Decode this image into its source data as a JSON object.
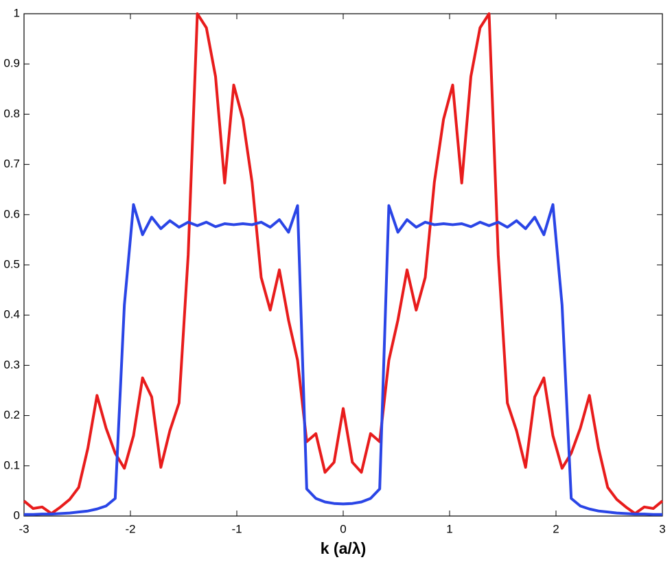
{
  "chart_data": {
    "type": "line",
    "xlabel": "k (a/λ)",
    "x": [
      -3,
      -2.914,
      -2.829,
      -2.743,
      -2.657,
      -2.571,
      -2.486,
      -2.4,
      -2.314,
      -2.229,
      -2.143,
      -2.057,
      -1.971,
      -1.886,
      -1.8,
      -1.714,
      -1.629,
      -1.543,
      -1.457,
      -1.371,
      -1.286,
      -1.2,
      -1.114,
      -1.029,
      -0.943,
      -0.857,
      -0.771,
      -0.686,
      -0.6,
      -0.514,
      -0.429,
      -0.343,
      -0.257,
      -0.171,
      -0.086,
      0,
      0.086,
      0.171,
      0.257,
      0.343,
      0.429,
      0.514,
      0.6,
      0.686,
      0.771,
      0.857,
      0.943,
      1.029,
      1.114,
      1.2,
      1.286,
      1.371,
      1.457,
      1.543,
      1.629,
      1.714,
      1.8,
      1.886,
      1.971,
      2.057,
      2.143,
      2.229,
      2.314,
      2.4,
      2.486,
      2.571,
      2.657,
      2.743,
      2.829,
      2.914,
      3
    ],
    "series": [
      {
        "color": "#e81c1c",
        "values": [
          0.03,
          0.015,
          0.018,
          0.005,
          0.018,
          0.033,
          0.057,
          0.135,
          0.24,
          0.175,
          0.125,
          0.095,
          0.16,
          0.275,
          0.237,
          0.097,
          0.17,
          0.225,
          0.52,
          1.0,
          0.972,
          0.875,
          0.663,
          0.858,
          0.79,
          0.665,
          0.475,
          0.41,
          0.49,
          0.39,
          0.31,
          0.148,
          0.164,
          0.087,
          0.107,
          0.214,
          0.107,
          0.087,
          0.164,
          0.148,
          0.31,
          0.39,
          0.49,
          0.41,
          0.475,
          0.665,
          0.79,
          0.858,
          0.663,
          0.875,
          0.972,
          1.0,
          0.52,
          0.225,
          0.17,
          0.097,
          0.237,
          0.275,
          0.16,
          0.095,
          0.125,
          0.175,
          0.24,
          0.135,
          0.057,
          0.033,
          0.018,
          0.005,
          0.018,
          0.015,
          0.03
        ]
      },
      {
        "color": "#2a45e6",
        "values": [
          0.003,
          0.003,
          0.004,
          0.004,
          0.005,
          0.006,
          0.008,
          0.01,
          0.014,
          0.02,
          0.035,
          0.42,
          0.62,
          0.56,
          0.595,
          0.572,
          0.588,
          0.575,
          0.585,
          0.578,
          0.585,
          0.576,
          0.582,
          0.58,
          0.582,
          0.58,
          0.585,
          0.575,
          0.59,
          0.565,
          0.618,
          0.054,
          0.035,
          0.028,
          0.025,
          0.024,
          0.025,
          0.028,
          0.035,
          0.054,
          0.618,
          0.565,
          0.59,
          0.575,
          0.585,
          0.58,
          0.582,
          0.58,
          0.582,
          0.576,
          0.585,
          0.578,
          0.585,
          0.575,
          0.588,
          0.572,
          0.595,
          0.56,
          0.62,
          0.42,
          0.035,
          0.02,
          0.014,
          0.01,
          0.008,
          0.006,
          0.005,
          0.004,
          0.004,
          0.003,
          0.003
        ]
      }
    ],
    "xlim": [
      -3,
      3
    ],
    "xticks": [
      -3,
      -2,
      -1,
      0,
      1,
      2,
      3
    ],
    "ylim": [
      0,
      1
    ],
    "yticks": [
      0,
      0.1,
      0.2,
      0.3,
      0.4,
      0.5,
      0.6,
      0.7,
      0.8,
      0.9,
      1
    ]
  }
}
